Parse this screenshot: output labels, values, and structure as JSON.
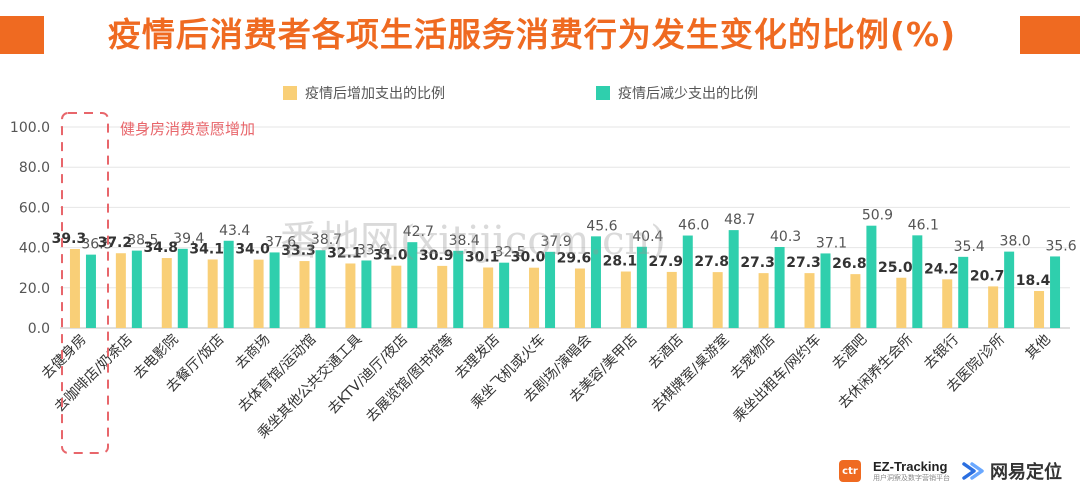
{
  "title": "疫情后消费者各项生活服务消费行为发生变化的比例(%)",
  "colors": {
    "increase": "#f9cf77",
    "decrease": "#2fcfad",
    "accent": "#ef6a21",
    "highlight": "#e8666b"
  },
  "annotation": "健身房消费意愿增加",
  "watermark": "番地网(xitijicom.cn)",
  "footer": {
    "brand": "EZ-Tracking",
    "brand_sub": "用户洞察及数字营销平台",
    "ctr": "ctr",
    "partner": "网易定位"
  },
  "chart_data": {
    "type": "bar",
    "categories": [
      "去健身房",
      "去咖啡店/奶茶店",
      "去电影院",
      "去餐厅/饭店",
      "去商场",
      "去体育馆/运动馆",
      "乘坐其他公共交通工具",
      "去KTV/迪厅/夜店",
      "去展览馆/图书馆等",
      "去理发店",
      "乘坐飞机或火车",
      "去剧场/演唱会",
      "去美容/美甲店",
      "去酒店",
      "去棋牌室/桌游室",
      "去宠物店",
      "乘坐出租车/网约车",
      "去酒吧",
      "去休闲养生会所",
      "去银行",
      "去医院/诊所",
      "其他"
    ],
    "series": [
      {
        "name": "疫情后增加支出的比例",
        "values": [
          39.3,
          37.2,
          34.8,
          34.1,
          34.0,
          33.3,
          32.1,
          31.0,
          30.9,
          30.1,
          30.0,
          29.6,
          28.1,
          27.9,
          27.8,
          27.3,
          27.3,
          26.8,
          25.0,
          24.2,
          20.7,
          18.4
        ]
      },
      {
        "name": "疫情后减少支出的比例",
        "values": [
          36.5,
          38.5,
          39.4,
          43.4,
          37.6,
          38.7,
          33.6,
          42.7,
          38.4,
          32.5,
          37.9,
          45.6,
          40.4,
          46.0,
          48.7,
          40.3,
          37.1,
          50.9,
          46.1,
          35.4,
          38.0,
          35.6
        ]
      }
    ],
    "ylim": [
      0,
      100
    ],
    "yticks": [
      "0.0",
      "20.0",
      "40.0",
      "60.0",
      "80.0",
      "100.0"
    ],
    "grid": true,
    "legend": "top"
  }
}
